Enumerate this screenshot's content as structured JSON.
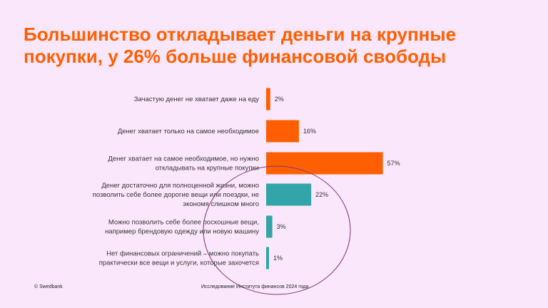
{
  "title_lines": [
    "Большинство откладывает деньги на крупные",
    "покупки, у 26% больше финансовой свободы"
  ],
  "footer": {
    "left": "© Swedbank",
    "center": "Исследование Института финансов 2024 года"
  },
  "colors": {
    "title": "#ff5f00",
    "bar_orange": "#ff5f00",
    "bar_teal": "#31a5a8",
    "highlight_circle": "#7d3a78",
    "background": "#fbe7fb"
  },
  "chart_data": {
    "type": "bar",
    "orientation": "horizontal",
    "categories": [
      [
        "Зачастую денег не хватает даже на еду"
      ],
      [
        "Денег хватает только на самое необходимое"
      ],
      [
        "Денег хватает на самое необходимое, но нужно",
        "откладывать на крупные покупки"
      ],
      [
        "Денег достаточно для полноценной жизни, можно",
        "позволить себе более дорогие вещи или поездки, не",
        "экономя слишком много"
      ],
      [
        "Можно позволить себе более роскошные вещи,",
        "например брендовую одежду или новую машину"
      ],
      [
        "Нет финансовых ограничений – можно покупать",
        "практически все вещи и услуги, которые захочется"
      ]
    ],
    "values": [
      2,
      16,
      57,
      22,
      3,
      1
    ],
    "value_labels": [
      "2%",
      "16%",
      "57%",
      "22%",
      "3%",
      "1%"
    ],
    "bar_colors": [
      "#ff5f00",
      "#ff5f00",
      "#ff5f00",
      "#31a5a8",
      "#31a5a8",
      "#31a5a8"
    ],
    "highlight": "circle around the last three categories",
    "grid": false,
    "legend": "none"
  }
}
